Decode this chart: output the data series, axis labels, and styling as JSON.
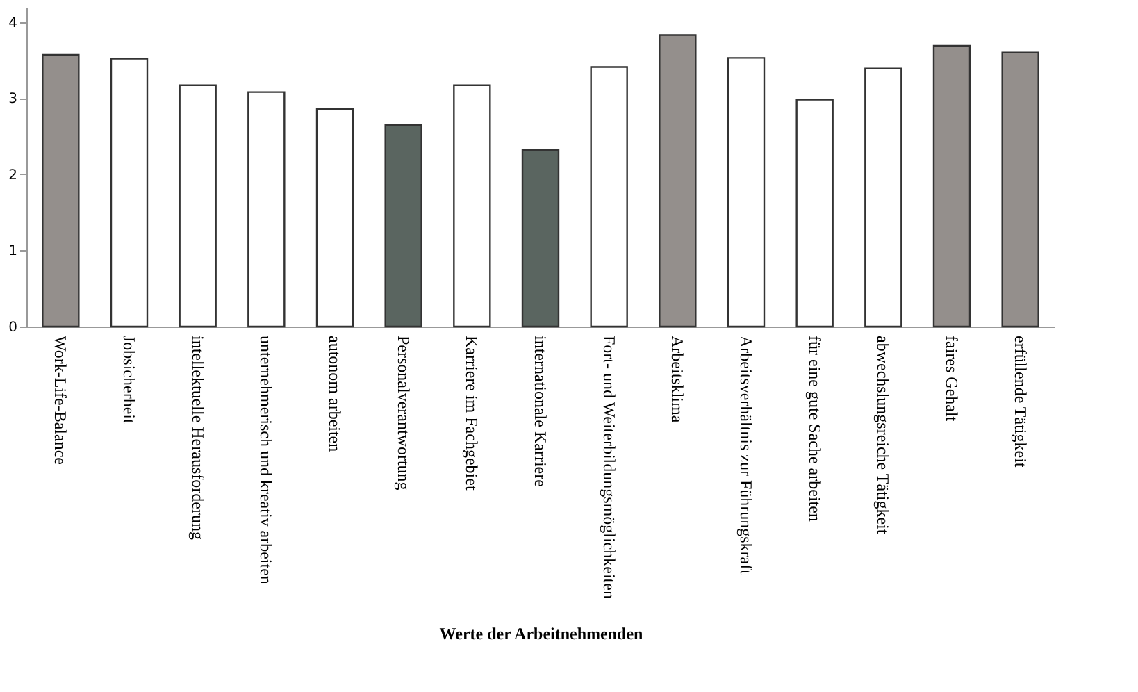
{
  "chart_data": {
    "type": "bar",
    "xlabel": "Werte der Arbeitnehmenden",
    "categories": [
      "Work-Life-Balance",
      "Jobsicherheit",
      "intellektuelle Herausforderung",
      "unternehmerisch und kreativ\narbeiten",
      "autonom arbeiten",
      "Personalverantwortung",
      "Karriere im Fachgebiet",
      "internationale Karriere",
      "Fort- und\nWeiterbildungsmöglichkeiten",
      "Arbeitsklima",
      "Arbeitsverhältnis zur Führungskraft",
      "für eine gute Sache arbeiten",
      "abwechslungsreiche Tätigkeit",
      "faires Gehalt",
      "erfüllende Tätigkeit"
    ],
    "values": [
      3.57,
      3.52,
      3.17,
      3.08,
      2.86,
      2.65,
      3.17,
      2.32,
      3.41,
      3.83,
      3.53,
      2.98,
      3.39,
      3.69,
      3.6
    ],
    "colors": [
      "#948f8c",
      "#ffffff",
      "#ffffff",
      "#ffffff",
      "#ffffff",
      "#5a6560",
      "#ffffff",
      "#5a6560",
      "#ffffff",
      "#948f8c",
      "#ffffff",
      "#ffffff",
      "#ffffff",
      "#948f8c",
      "#948f8c"
    ],
    "ylim": [
      0,
      4.2
    ],
    "yticks": [
      0,
      1,
      2,
      3,
      4
    ],
    "grid": false
  }
}
